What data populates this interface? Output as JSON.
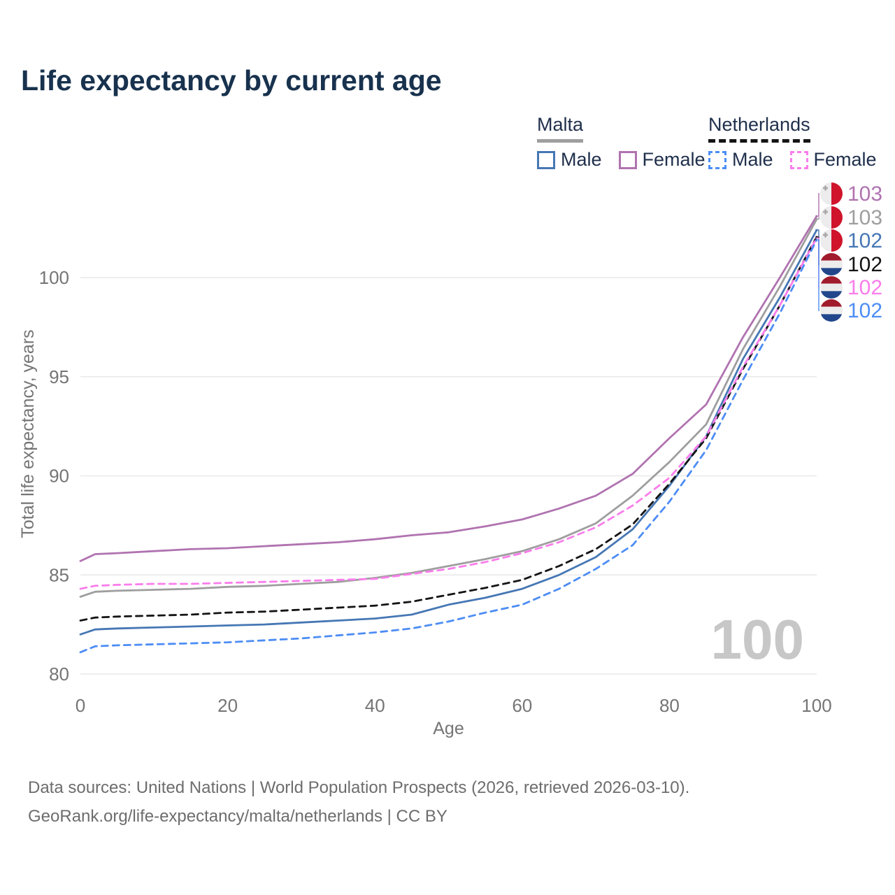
{
  "title": "Life expectancy by current age",
  "legend": {
    "groups": [
      {
        "country": "Malta",
        "line_style": "solid",
        "underline_color": "#9e9e9e",
        "male_label": "Male",
        "female_label": "Female",
        "male_color": "#4677b4",
        "female_color": "#b073b0"
      },
      {
        "country": "Netherlands",
        "line_style": "dashed",
        "underline_color": "#141414",
        "male_label": "Male",
        "female_label": "Female",
        "male_color": "#4d8df5",
        "female_color": "#fa7deb"
      }
    ]
  },
  "chart_data": {
    "type": "line",
    "title": "Life expectancy by current age",
    "xlabel": "Age",
    "ylabel": "Total life expectancy, years",
    "xlim": [
      0,
      100
    ],
    "ylim": [
      80,
      103.5
    ],
    "x_ticks": [
      0,
      20,
      40,
      60,
      80,
      100
    ],
    "y_ticks": [
      80,
      85,
      90,
      95,
      100
    ],
    "grid": "horizontal",
    "age_indicator": "100",
    "x": [
      0,
      2,
      5,
      10,
      15,
      20,
      25,
      30,
      35,
      40,
      45,
      50,
      55,
      60,
      65,
      70,
      75,
      80,
      85,
      90,
      95,
      100
    ],
    "series": [
      {
        "name": "Malta Female",
        "country": "Malta",
        "sex": "Female",
        "flag": "mt",
        "color": "#b073b0",
        "dash": false,
        "end_label": "103",
        "values": [
          85.7,
          86.05,
          86.1,
          86.2,
          86.3,
          86.35,
          86.45,
          86.55,
          86.65,
          86.8,
          87.0,
          87.15,
          87.45,
          87.8,
          88.35,
          89.0,
          90.1,
          91.9,
          93.6,
          97.0,
          100.0,
          103.1
        ]
      },
      {
        "name": "Malta Both sexes",
        "country": "Malta",
        "sex": "Both",
        "flag": "mt",
        "color": "#9e9e9e",
        "dash": false,
        "end_label": "103",
        "values": [
          83.9,
          84.15,
          84.2,
          84.25,
          84.3,
          84.4,
          84.45,
          84.55,
          84.65,
          84.85,
          85.1,
          85.45,
          85.8,
          86.2,
          86.8,
          87.6,
          89.0,
          90.7,
          92.6,
          96.4,
          99.55,
          102.95
        ]
      },
      {
        "name": "Malta Male",
        "country": "Malta",
        "sex": "Male",
        "flag": "mt",
        "color": "#4677b4",
        "dash": false,
        "end_label": "102",
        "values": [
          82.0,
          82.25,
          82.3,
          82.35,
          82.4,
          82.45,
          82.5,
          82.6,
          82.7,
          82.8,
          83.0,
          83.5,
          83.85,
          84.3,
          85.0,
          85.9,
          87.3,
          89.5,
          92.0,
          95.9,
          99.0,
          102.4
        ]
      },
      {
        "name": "Netherlands Both sexes",
        "country": "Netherlands",
        "sex": "Both",
        "flag": "nl",
        "color": "#141414",
        "dash": true,
        "end_label": "102",
        "values": [
          82.7,
          82.85,
          82.9,
          82.95,
          83.0,
          83.1,
          83.15,
          83.25,
          83.35,
          83.45,
          83.65,
          84.0,
          84.35,
          84.75,
          85.45,
          86.3,
          87.55,
          89.6,
          91.9,
          95.4,
          98.6,
          102.05
        ]
      },
      {
        "name": "Netherlands Female",
        "country": "Netherlands",
        "sex": "Female",
        "flag": "nl",
        "color": "#fa7deb",
        "dash": true,
        "end_label": "102",
        "values": [
          84.3,
          84.45,
          84.5,
          84.55,
          84.55,
          84.6,
          84.65,
          84.7,
          84.75,
          84.8,
          85.05,
          85.3,
          85.65,
          86.1,
          86.65,
          87.4,
          88.5,
          89.9,
          92.0,
          95.5,
          98.6,
          102.0
        ]
      },
      {
        "name": "Netherlands Male",
        "country": "Netherlands",
        "sex": "Male",
        "flag": "nl",
        "color": "#4d8df5",
        "dash": true,
        "end_label": "102",
        "values": [
          81.1,
          81.4,
          81.45,
          81.5,
          81.55,
          81.6,
          81.7,
          81.8,
          81.95,
          82.1,
          82.3,
          82.65,
          83.1,
          83.5,
          84.3,
          85.3,
          86.5,
          88.7,
          91.3,
          94.85,
          98.2,
          101.9
        ]
      }
    ],
    "flag_colors": {
      "malta_white": "#ececec",
      "malta_red": "#cf142b",
      "malta_cross": "#a9a9a9",
      "nl_red": "#a01b2c",
      "nl_white": "#ececec",
      "nl_blue": "#21468b"
    },
    "style": {
      "grid_color": "#e9e9e9",
      "axis_text_color": "#757575",
      "watermark_color": "#c7c7c7"
    }
  },
  "footer": {
    "line1": "Data sources: United Nations | World Population Prospects (2026, retrieved 2026-03-10).",
    "line2": "GeoRank.org/life-expectancy/malta/netherlands | CC BY"
  }
}
